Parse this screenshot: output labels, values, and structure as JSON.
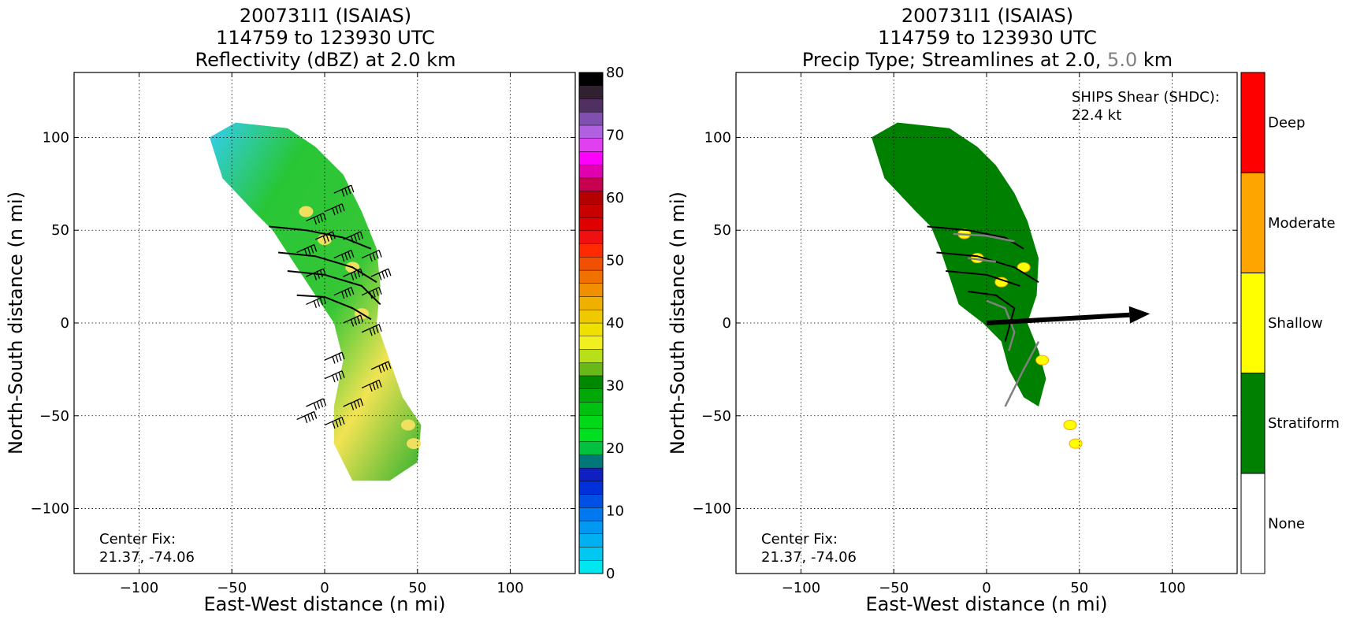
{
  "colors": {
    "reflectivity_scale": [
      "#00e5ee",
      "#00c8f0",
      "#00b0f0",
      "#0098f0",
      "#0078f0",
      "#0050e6",
      "#0030d8",
      "#1020c0",
      "#007878",
      "#00c040",
      "#00e020",
      "#00d818",
      "#00c010",
      "#00a808",
      "#008800",
      "#68b818",
      "#b8e018",
      "#f0f020",
      "#f0e000",
      "#f0c800",
      "#f0b000",
      "#f09000",
      "#f07000",
      "#f05000",
      "#ff2a00",
      "#f01010",
      "#e00000",
      "#c80000",
      "#b40000",
      "#c80050",
      "#e000b0",
      "#ff00ff",
      "#e040f0",
      "#b060e0",
      "#8050b0",
      "#503060",
      "#302030",
      "#000000"
    ],
    "precip_type": {
      "None": "#ffffff",
      "Stratiform": "#008000",
      "Shallow": "#ffff00",
      "Moderate": "#ffa500",
      "Deep": "#ff0000"
    }
  },
  "chart_data": [
    {
      "type": "heatmap",
      "title_lines": [
        "200731I1 (ISAIAS)",
        "114759 to 123930 UTC",
        "Reflectivity (dBZ) at 2.0 km"
      ],
      "xlabel": "East-West distance (n mi)",
      "ylabel": "North-South distance (n mi)",
      "xlim": [
        -135,
        135
      ],
      "ylim": [
        -135,
        135
      ],
      "xticks": [
        -100,
        -50,
        0,
        50,
        100
      ],
      "yticks": [
        -100,
        -50,
        0,
        50,
        100
      ],
      "xtick_labels": [
        "−100",
        "−50",
        "0",
        "50",
        "100"
      ],
      "ytick_labels": [
        "−100",
        "−50",
        "0",
        "50",
        "100"
      ],
      "grid": true,
      "annotation_lines": [
        "Center Fix:",
        "21.37, -74.06"
      ],
      "colorbar": {
        "label_values": [
          0,
          10,
          20,
          30,
          40,
          50,
          60,
          70,
          80
        ],
        "tick_labels": [
          "0",
          "10",
          "20",
          "30",
          "40",
          "50",
          "60",
          "70",
          "80"
        ],
        "levels": 40
      },
      "echo_region": [
        [
          -48,
          108
        ],
        [
          -20,
          105
        ],
        [
          -5,
          95
        ],
        [
          10,
          80
        ],
        [
          20,
          60
        ],
        [
          28,
          40
        ],
        [
          30,
          20
        ],
        [
          28,
          0
        ],
        [
          35,
          -20
        ],
        [
          42,
          -40
        ],
        [
          52,
          -55
        ],
        [
          50,
          -75
        ],
        [
          35,
          -85
        ],
        [
          15,
          -85
        ],
        [
          5,
          -65
        ],
        [
          5,
          -45
        ],
        [
          10,
          -20
        ],
        [
          5,
          0
        ],
        [
          -5,
          15
        ],
        [
          -15,
          30
        ],
        [
          -28,
          50
        ],
        [
          -38,
          60
        ],
        [
          -55,
          78
        ],
        [
          -62,
          100
        ]
      ],
      "wind_barbs": [
        [
          5,
          70
        ],
        [
          0,
          60
        ],
        [
          -10,
          55
        ],
        [
          -5,
          45
        ],
        [
          10,
          45
        ],
        [
          -15,
          38
        ],
        [
          5,
          35
        ],
        [
          20,
          35
        ],
        [
          -10,
          25
        ],
        [
          10,
          25
        ],
        [
          25,
          25
        ],
        [
          -10,
          10
        ],
        [
          5,
          15
        ],
        [
          20,
          15
        ],
        [
          10,
          0
        ],
        [
          20,
          -5
        ],
        [
          0,
          -20
        ],
        [
          25,
          -25
        ],
        [
          0,
          -30
        ],
        [
          20,
          -35
        ],
        [
          -10,
          -45
        ],
        [
          10,
          -45
        ],
        [
          -15,
          -52
        ],
        [
          0,
          -55
        ]
      ],
      "streamlines": [
        [
          [
            -30,
            52
          ],
          [
            -10,
            50
          ],
          [
            10,
            46
          ],
          [
            25,
            40
          ]
        ],
        [
          [
            -25,
            38
          ],
          [
            -5,
            36
          ],
          [
            15,
            30
          ],
          [
            28,
            22
          ]
        ],
        [
          [
            -20,
            28
          ],
          [
            0,
            26
          ],
          [
            20,
            20
          ],
          [
            30,
            10
          ]
        ],
        [
          [
            -15,
            15
          ],
          [
            0,
            14
          ],
          [
            15,
            8
          ],
          [
            25,
            2
          ]
        ]
      ]
    },
    {
      "type": "heatmap",
      "title_lines": [
        "200731I1 (ISAIAS)",
        "114759 to 123930 UTC"
      ],
      "title_line3": {
        "prefix": "Precip Type; Streamlines at 2.0, ",
        "gray_part": "5.0",
        "suffix": " km"
      },
      "xlabel": "East-West distance (n mi)",
      "ylabel": "North-South distance (n mi)",
      "xlim": [
        -135,
        135
      ],
      "ylim": [
        -135,
        135
      ],
      "xticks": [
        -100,
        -50,
        0,
        50,
        100
      ],
      "yticks": [
        -100,
        -50,
        0,
        50,
        100
      ],
      "xtick_labels": [
        "−100",
        "−50",
        "0",
        "50",
        "100"
      ],
      "ytick_labels": [
        "−100",
        "−50",
        "0",
        "50",
        "100"
      ],
      "grid": true,
      "annotation_lines": [
        "Center Fix:",
        "21.37, -74.06"
      ],
      "shear_text_lines": [
        "SHIPS Shear (SHDC):",
        "22.4 kt"
      ],
      "shear_vector": {
        "from": [
          0,
          0
        ],
        "to": [
          88,
          5
        ]
      },
      "categories": [
        "None",
        "Stratiform",
        "Shallow",
        "Moderate",
        "Deep"
      ],
      "echo_region": [
        [
          -48,
          108
        ],
        [
          -20,
          105
        ],
        [
          -5,
          95
        ],
        [
          5,
          85
        ],
        [
          15,
          70
        ],
        [
          22,
          55
        ],
        [
          28,
          35
        ],
        [
          27,
          15
        ],
        [
          22,
          0
        ],
        [
          28,
          -15
        ],
        [
          32,
          -30
        ],
        [
          28,
          -45
        ],
        [
          20,
          -40
        ],
        [
          12,
          -25
        ],
        [
          8,
          -10
        ],
        [
          -2,
          0
        ],
        [
          -15,
          10
        ],
        [
          -20,
          25
        ],
        [
          -25,
          40
        ],
        [
          -30,
          52
        ],
        [
          -38,
          60
        ],
        [
          -55,
          78
        ],
        [
          -62,
          100
        ]
      ],
      "streamlines_black": [
        [
          [
            -32,
            52
          ],
          [
            -10,
            50
          ],
          [
            10,
            46
          ],
          [
            20,
            40
          ]
        ],
        [
          [
            -27,
            38
          ],
          [
            -5,
            36
          ],
          [
            15,
            30
          ],
          [
            28,
            22
          ]
        ],
        [
          [
            -22,
            28
          ],
          [
            0,
            26
          ],
          [
            18,
            20
          ]
        ],
        [
          [
            -10,
            17
          ],
          [
            5,
            15
          ],
          [
            15,
            8
          ],
          [
            10,
            -10
          ]
        ]
      ],
      "streamlines_gray": [
        [
          [
            -18,
            48
          ],
          [
            0,
            47
          ],
          [
            15,
            44
          ]
        ],
        [
          [
            -10,
            35
          ],
          [
            5,
            33
          ]
        ],
        [
          [
            0,
            12
          ],
          [
            10,
            8
          ],
          [
            15,
            -5
          ],
          [
            12,
            -15
          ]
        ],
        [
          [
            10,
            -45
          ],
          [
            15,
            -35
          ],
          [
            20,
            -25
          ],
          [
            28,
            -10
          ]
        ]
      ]
    }
  ]
}
